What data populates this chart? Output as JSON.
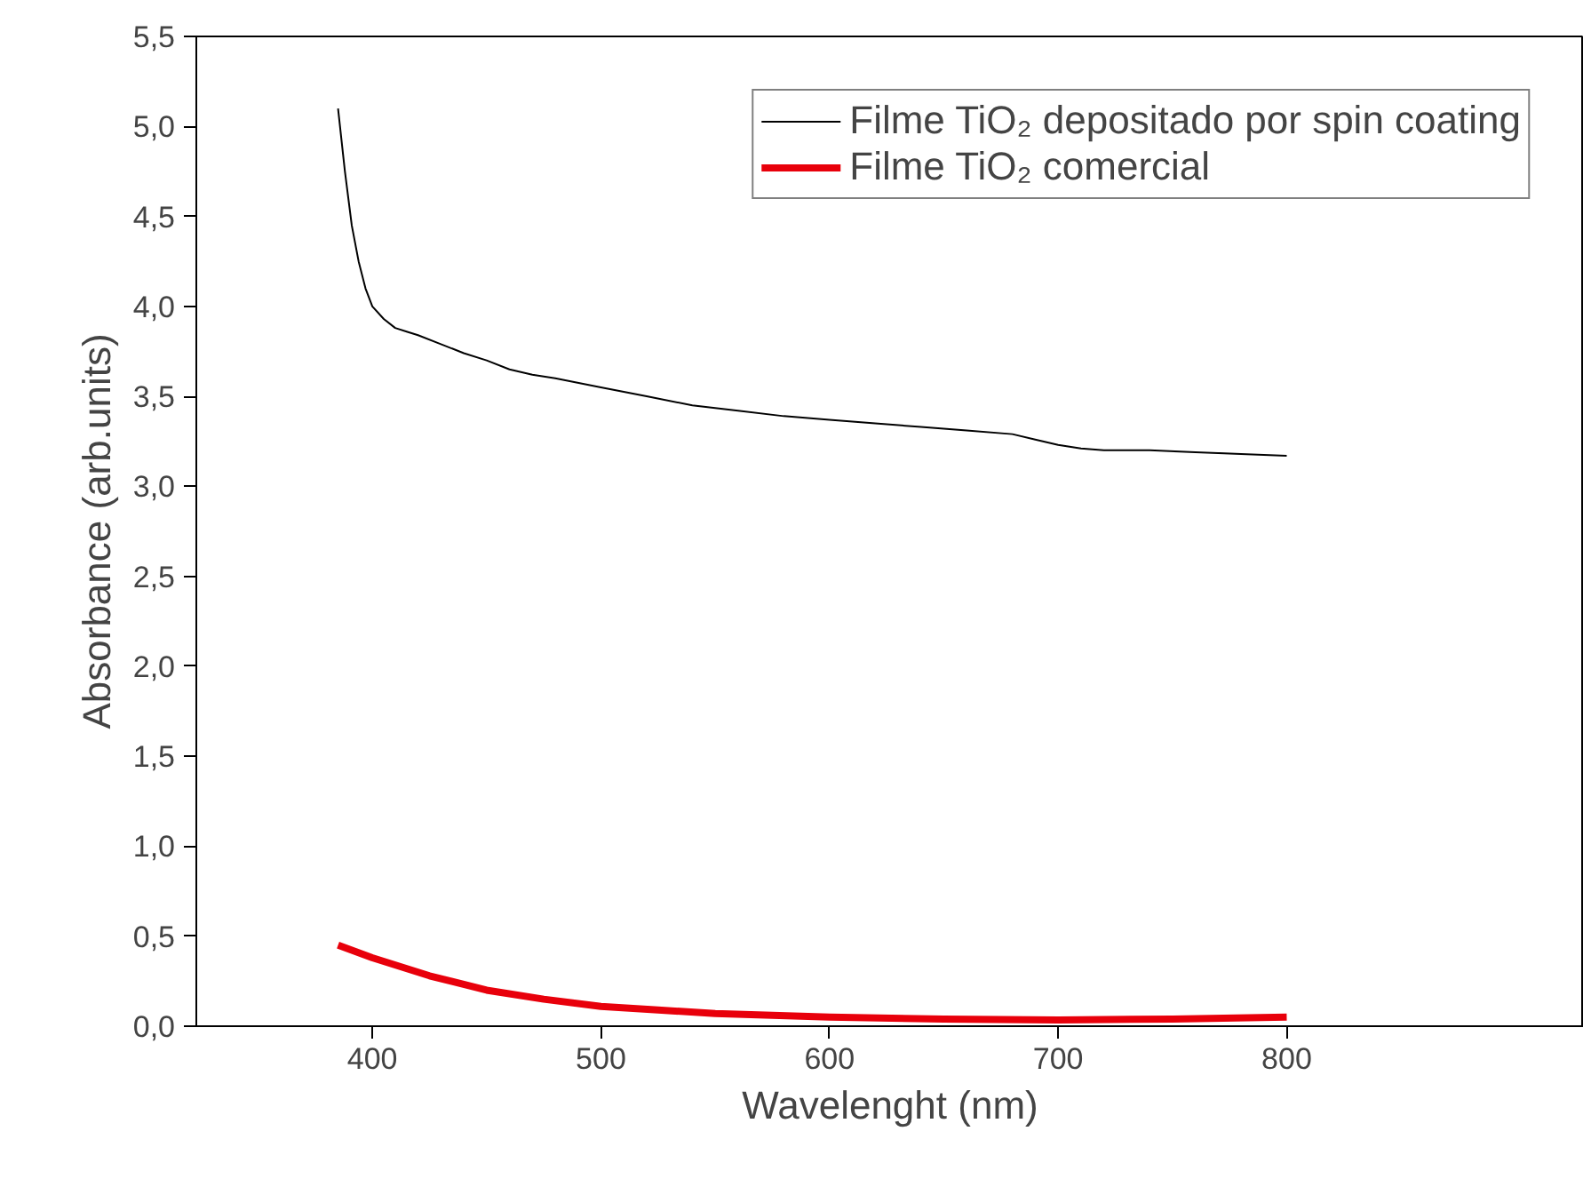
{
  "chart_data": {
    "type": "line",
    "xlabel": "Wavelenght (nm)",
    "ylabel": "Absorbance (arb.units)",
    "xlim": [
      323,
      930
    ],
    "ylim": [
      0,
      5.5
    ],
    "xticks": [
      400,
      500,
      600,
      700,
      800
    ],
    "yticks": [
      {
        "value": 0,
        "label": "0,0"
      },
      {
        "value": 0.5,
        "label": "0,5"
      },
      {
        "value": 1,
        "label": "1,0"
      },
      {
        "value": 1.5,
        "label": "1,5"
      },
      {
        "value": 2,
        "label": "2,0"
      },
      {
        "value": 2.5,
        "label": "2,5"
      },
      {
        "value": 3,
        "label": "3,0"
      },
      {
        "value": 3.5,
        "label": "3,5"
      },
      {
        "value": 4,
        "label": "4,0"
      },
      {
        "value": 4.5,
        "label": "4,5"
      },
      {
        "value": 5,
        "label": "5,0"
      },
      {
        "value": 5.5,
        "label": "5,5"
      }
    ],
    "grid": false,
    "legend": "top right",
    "marker": "none",
    "line_style": "solid",
    "series": [
      {
        "name": "Filme TiO₂ depositado por spin coating",
        "color": "#000000",
        "x": [
          385,
          388,
          391,
          394,
          397,
          400,
          405,
          410,
          415,
          420,
          430,
          440,
          450,
          460,
          470,
          480,
          500,
          520,
          540,
          560,
          580,
          600,
          620,
          640,
          660,
          680,
          690,
          700,
          710,
          720,
          740,
          760,
          780,
          800
        ],
        "values": [
          5.1,
          4.75,
          4.45,
          4.25,
          4.1,
          4.0,
          3.93,
          3.88,
          3.86,
          3.84,
          3.79,
          3.74,
          3.7,
          3.65,
          3.62,
          3.6,
          3.55,
          3.5,
          3.45,
          3.42,
          3.39,
          3.37,
          3.35,
          3.33,
          3.31,
          3.29,
          3.26,
          3.23,
          3.21,
          3.2,
          3.2,
          3.19,
          3.18,
          3.17
        ]
      },
      {
        "name": "Filme TiO₂ comercial",
        "color": "#e8000b",
        "x": [
          385,
          400,
          425,
          450,
          475,
          500,
          525,
          550,
          575,
          600,
          650,
          700,
          750,
          800
        ],
        "values": [
          0.45,
          0.38,
          0.28,
          0.2,
          0.15,
          0.11,
          0.09,
          0.07,
          0.06,
          0.05,
          0.04,
          0.035,
          0.04,
          0.05
        ]
      }
    ]
  }
}
